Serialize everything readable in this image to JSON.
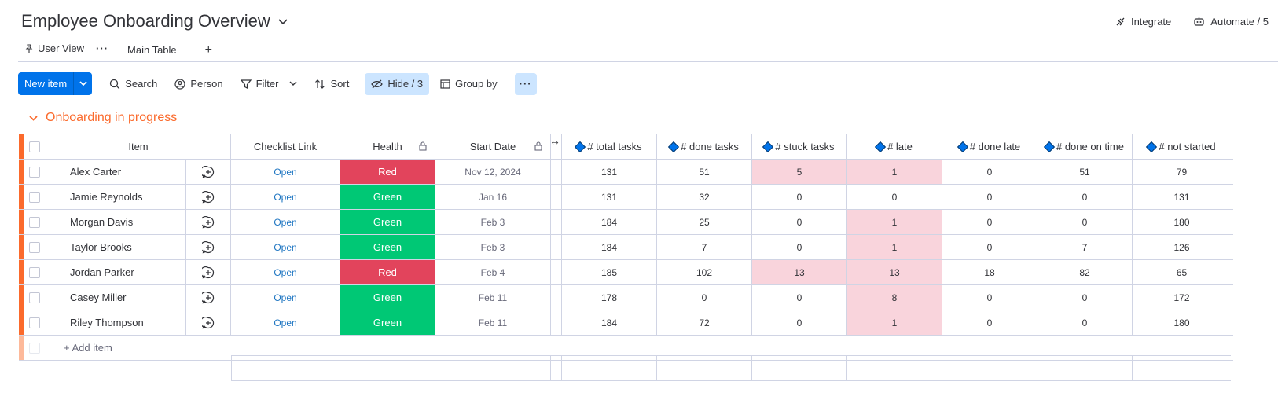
{
  "header": {
    "title": "Employee Onboarding Overview",
    "integrate_label": "Integrate",
    "automate_label": "Automate / 5"
  },
  "tabs": [
    {
      "label": "User View",
      "active": true
    },
    {
      "label": "Main Table",
      "active": false
    }
  ],
  "tabs_add": "+",
  "toolbar": {
    "new_item_label": "New item",
    "search_label": "Search",
    "person_label": "Person",
    "filter_label": "Filter",
    "sort_label": "Sort",
    "hide_label": "Hide / 3",
    "group_by_label": "Group by"
  },
  "group": {
    "title": "Onboarding in progress",
    "color": "#fb6a2c"
  },
  "columns": {
    "item": "Item",
    "checklist": "Checklist Link",
    "health": "Health",
    "start_date": "Start Date",
    "total": "# total tasks",
    "done": "# done tasks",
    "stuck": "# stuck tasks",
    "late": "# late",
    "done_late": "# done late",
    "done_on_time": "# done on time",
    "not_started": "# not started"
  },
  "rows": [
    {
      "name": "Alex Carter",
      "link": "Open",
      "health": "Red",
      "date": "Nov 12, 2024",
      "total": "131",
      "done": "51",
      "stuck": "5",
      "late": "1",
      "done_late": "0",
      "on_time": "51",
      "not_started": "79"
    },
    {
      "name": "Jamie Reynolds",
      "link": "Open",
      "health": "Green",
      "date": "Jan 16",
      "total": "131",
      "done": "32",
      "stuck": "0",
      "late": "0",
      "done_late": "0",
      "on_time": "0",
      "not_started": "131"
    },
    {
      "name": "Morgan Davis",
      "link": "Open",
      "health": "Green",
      "date": "Feb 3",
      "total": "184",
      "done": "25",
      "stuck": "0",
      "late": "1",
      "done_late": "0",
      "on_time": "0",
      "not_started": "180"
    },
    {
      "name": "Taylor Brooks",
      "link": "Open",
      "health": "Green",
      "date": "Feb 3",
      "total": "184",
      "done": "7",
      "stuck": "0",
      "late": "1",
      "done_late": "0",
      "on_time": "7",
      "not_started": "126"
    },
    {
      "name": "Jordan Parker",
      "link": "Open",
      "health": "Red",
      "date": "Feb 4",
      "total": "185",
      "done": "102",
      "stuck": "13",
      "late": "13",
      "done_late": "18",
      "on_time": "82",
      "not_started": "65"
    },
    {
      "name": "Casey Miller",
      "link": "Open",
      "health": "Green",
      "date": "Feb 11",
      "total": "178",
      "done": "0",
      "stuck": "0",
      "late": "8",
      "done_late": "0",
      "on_time": "0",
      "not_started": "172"
    },
    {
      "name": "Riley Thompson",
      "link": "Open",
      "health": "Green",
      "date": "Feb 11",
      "total": "184",
      "done": "72",
      "stuck": "0",
      "late": "1",
      "done_late": "0",
      "on_time": "0",
      "not_started": "180"
    }
  ],
  "add_item_label": "+ Add item",
  "colors": {
    "accent": "#0073ea",
    "status_red": "#e2445c",
    "status_green": "#00c875",
    "highlight_pink": "#f9d4dc",
    "link": "#1f76c2"
  }
}
